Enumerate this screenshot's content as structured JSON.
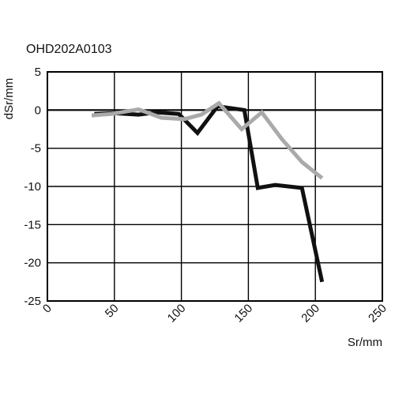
{
  "chart_data": {
    "type": "line",
    "title": "OHD202A0103",
    "xlabel": "Sr/mm",
    "ylabel": "dSr/mm",
    "xlim": [
      0,
      250
    ],
    "ylim": [
      -25,
      5
    ],
    "xticks": [
      "0",
      "50",
      "100",
      "150",
      "200",
      "250"
    ],
    "yticks": [
      "5",
      "0",
      "-5",
      "-10",
      "-15",
      "-20",
      "-25"
    ],
    "grid": true,
    "legend": "none",
    "series": [
      {
        "color": "#111111",
        "x": [
          35,
          50,
          68,
          82,
          98,
          112,
          127,
          147,
          157,
          170,
          190,
          205
        ],
        "y": [
          -0.5,
          -0.4,
          -0.6,
          -0.3,
          -0.5,
          -3.0,
          0.5,
          0.0,
          -10.2,
          -9.8,
          -10.2,
          -22.5
        ]
      },
      {
        "color": "#aaaaaa",
        "x": [
          33,
          48,
          68,
          85,
          102,
          115,
          128,
          145,
          160,
          175,
          190,
          205
        ],
        "y": [
          -0.7,
          -0.5,
          0.1,
          -1.0,
          -1.2,
          -0.6,
          0.9,
          -2.5,
          -0.3,
          -3.8,
          -6.8,
          -8.9
        ]
      }
    ]
  }
}
